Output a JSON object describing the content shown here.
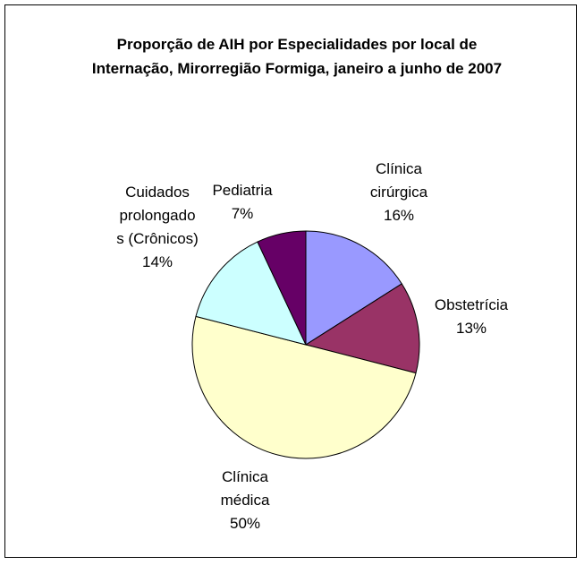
{
  "chart_data": {
    "type": "pie",
    "title": "Proporção de AIH por Especialidades por local de Internação, Mirorregião Formiga, janeiro a junho de 2007",
    "categories": [
      "Clínica cirúrgica",
      "Obstetrícia",
      "Clínica médica",
      "Cuidados prolongados (Crônicos)",
      "Pediatria"
    ],
    "values": [
      16,
      13,
      50,
      14,
      7
    ],
    "value_labels": [
      "16%",
      "13%",
      "50%",
      "14%",
      "7%"
    ],
    "colors": [
      "#9999FF",
      "#993366",
      "#FFFFCC",
      "#CCFFFF",
      "#660066"
    ]
  }
}
